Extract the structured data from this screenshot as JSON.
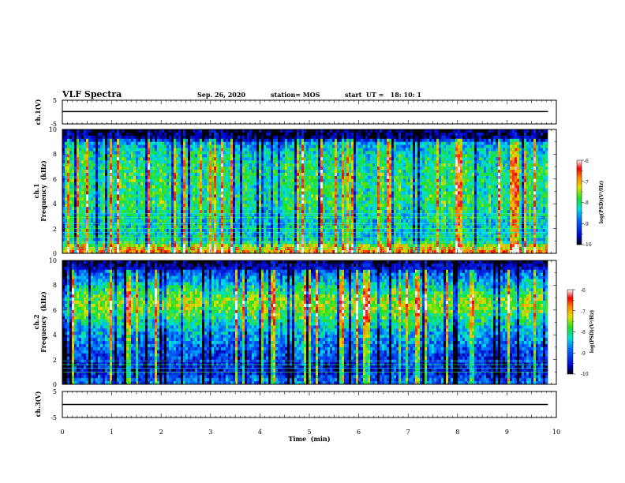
{
  "header": {
    "title": "VLF Spectra",
    "date": "Sep. 26, 2020",
    "station": "station= MOS",
    "start": "start  UT =   18: 10: 1"
  },
  "chart_data": [
    {
      "type": "line",
      "ylabel": "ch.1(V)",
      "ylim": [
        -5,
        5
      ],
      "yticks": [
        "5",
        "-5"
      ],
      "series": [
        {
          "name": "",
          "x": [
            0,
            9.83
          ],
          "y": [
            0.2,
            0.2
          ]
        }
      ],
      "xlim": [
        0,
        10
      ]
    },
    {
      "type": "heatmap",
      "ylabel_line1": "ch.1",
      "ylabel_line2": "Frequency  (kHz)",
      "ylim": [
        0,
        10
      ],
      "yticks": [
        "0",
        "2",
        "4",
        "6",
        "8",
        "10"
      ],
      "xlim": [
        0,
        10
      ],
      "data_end_min": 9.83,
      "colorbar": {
        "label": "log(PSD)(V²/Hz)",
        "ticks": [
          "-6",
          "-7",
          "-8",
          "-9",
          "-10"
        ],
        "range": [
          -10,
          -6
        ]
      },
      "profile_khz": [
        0.3,
        1,
        2,
        3,
        4,
        5,
        6,
        7,
        8,
        8.9,
        9.3,
        10
      ],
      "profile_level": [
        -6.8,
        -8.2,
        -8.3,
        -8.2,
        -8.0,
        -8.0,
        -8.0,
        -8.0,
        -8.2,
        -8.6,
        -9.7,
        -10
      ],
      "lines_khz": [
        0.4,
        0.9,
        1.3,
        1.7,
        2.0,
        2.4,
        2.9,
        3.2
      ]
    },
    {
      "type": "heatmap",
      "ylabel_line1": "ch.2",
      "ylabel_line2": "Frequency  (kHz)",
      "ylim": [
        0,
        10
      ],
      "yticks": [
        "0",
        "2",
        "4",
        "6",
        "8",
        "10"
      ],
      "xlim": [
        0,
        10
      ],
      "data_end_min": 9.83,
      "colorbar": {
        "label": "log(PSD)(V²/Hz)",
        "ticks": [
          "-6",
          "-7",
          "-8",
          "-9",
          "-10"
        ],
        "range": [
          -10,
          -6
        ]
      },
      "profile_khz": [
        0.3,
        1,
        2,
        3,
        4,
        5,
        6,
        6.5,
        7,
        8,
        9,
        9.5,
        10
      ],
      "profile_level": [
        -8.9,
        -9.4,
        -9.2,
        -8.9,
        -8.6,
        -8.2,
        -7.6,
        -7.5,
        -7.6,
        -8.3,
        -9.0,
        -9.5,
        -10
      ],
      "lines_khz": [
        1.0,
        1.3,
        1.6,
        1.9
      ]
    },
    {
      "type": "line",
      "ylabel": "ch.3(V)",
      "ylim": [
        -5,
        5
      ],
      "yticks": [
        "5",
        "-5"
      ],
      "series": [
        {
          "name": "",
          "x": [
            0,
            9.83
          ],
          "y": [
            0,
            0
          ]
        }
      ],
      "xlim": [
        0,
        10
      ]
    }
  ],
  "x_axis": {
    "label": "Time  (min)",
    "ticks": [
      "0",
      "1",
      "2",
      "3",
      "4",
      "5",
      "6",
      "7",
      "8",
      "9",
      "10"
    ]
  }
}
